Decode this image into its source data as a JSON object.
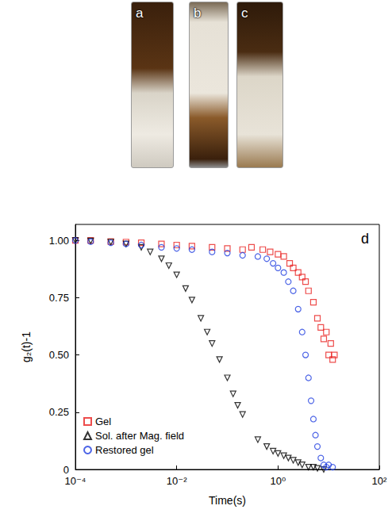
{
  "photos": {
    "labels": [
      "a",
      "b",
      "c"
    ]
  },
  "chart_data": {
    "type": "scatter",
    "title": "d",
    "x_label": "Time(s)",
    "y_label": "g₂(t)-1",
    "log": "x",
    "grid": false,
    "legend": "lower left",
    "xlim": [
      0.0001,
      100
    ],
    "xticks": [
      {
        "value": 0.0001,
        "label": "10⁻⁴"
      },
      {
        "value": 0.01,
        "label": "10⁻²"
      },
      {
        "value": 1,
        "label": "10⁰"
      },
      {
        "value": 100,
        "label": "10²"
      }
    ],
    "ylim": [
      0,
      1.07
    ],
    "yticks": [
      0,
      0.25,
      {
        "value": 0.5,
        "label": "0.50"
      },
      0.75,
      {
        "value": 1,
        "label": "1.00"
      }
    ],
    "series": [
      {
        "name": "Gel",
        "color": "#e8201f",
        "marker": "square",
        "x": [
          0.0001,
          0.0002,
          0.0005,
          0.001,
          0.002,
          0.005,
          0.01,
          0.02,
          0.05,
          0.1,
          0.2,
          0.3,
          0.5,
          0.7,
          1,
          1.3,
          1.7,
          2,
          2.5,
          3,
          3.5,
          4,
          5,
          6,
          7,
          8,
          9,
          10,
          11,
          12,
          13
        ],
        "values": [
          1.0,
          1.0,
          0.995,
          0.993,
          0.99,
          0.985,
          0.98,
          0.975,
          0.97,
          0.965,
          0.96,
          0.97,
          0.96,
          0.95,
          0.94,
          0.93,
          0.9,
          0.88,
          0.86,
          0.84,
          0.82,
          0.78,
          0.73,
          0.66,
          0.62,
          0.57,
          0.6,
          0.5,
          0.55,
          0.48,
          0.5
        ]
      },
      {
        "name": "Sol. after Mag. field",
        "color": "#000000",
        "marker": "triangle-down",
        "x": [
          0.0001,
          0.0002,
          0.0005,
          0.001,
          0.002,
          0.003,
          0.005,
          0.007,
          0.01,
          0.015,
          0.02,
          0.03,
          0.04,
          0.05,
          0.07,
          0.1,
          0.13,
          0.16,
          0.2,
          0.4,
          0.6,
          0.8,
          1,
          1.3,
          1.6,
          2,
          2.5,
          3,
          4,
          5,
          6,
          8
        ],
        "values": [
          1.0,
          0.998,
          0.993,
          0.985,
          0.97,
          0.95,
          0.92,
          0.89,
          0.85,
          0.79,
          0.74,
          0.66,
          0.6,
          0.55,
          0.48,
          0.4,
          0.33,
          0.28,
          0.24,
          0.13,
          0.1,
          0.08,
          0.07,
          0.06,
          0.05,
          0.04,
          0.03,
          0.02,
          0.01,
          0.01,
          0.005,
          0
        ]
      },
      {
        "name": "Restored gel",
        "color": "#1f3de0",
        "marker": "circle",
        "x": [
          0.0001,
          0.0002,
          0.0005,
          0.001,
          0.002,
          0.005,
          0.01,
          0.02,
          0.05,
          0.1,
          0.2,
          0.4,
          0.6,
          0.8,
          1,
          1.3,
          1.6,
          2,
          2.5,
          3,
          3.5,
          4,
          4.5,
          5,
          5.5,
          6,
          7,
          8,
          9,
          10,
          12
        ],
        "values": [
          1.0,
          0.995,
          0.99,
          0.985,
          0.98,
          0.97,
          0.965,
          0.96,
          0.95,
          0.945,
          0.935,
          0.93,
          0.92,
          0.9,
          0.88,
          0.86,
          0.82,
          0.78,
          0.7,
          0.6,
          0.5,
          0.4,
          0.3,
          0.22,
          0.15,
          0.1,
          0.05,
          0.02,
          0.01,
          0.02,
          0.01
        ]
      }
    ]
  }
}
